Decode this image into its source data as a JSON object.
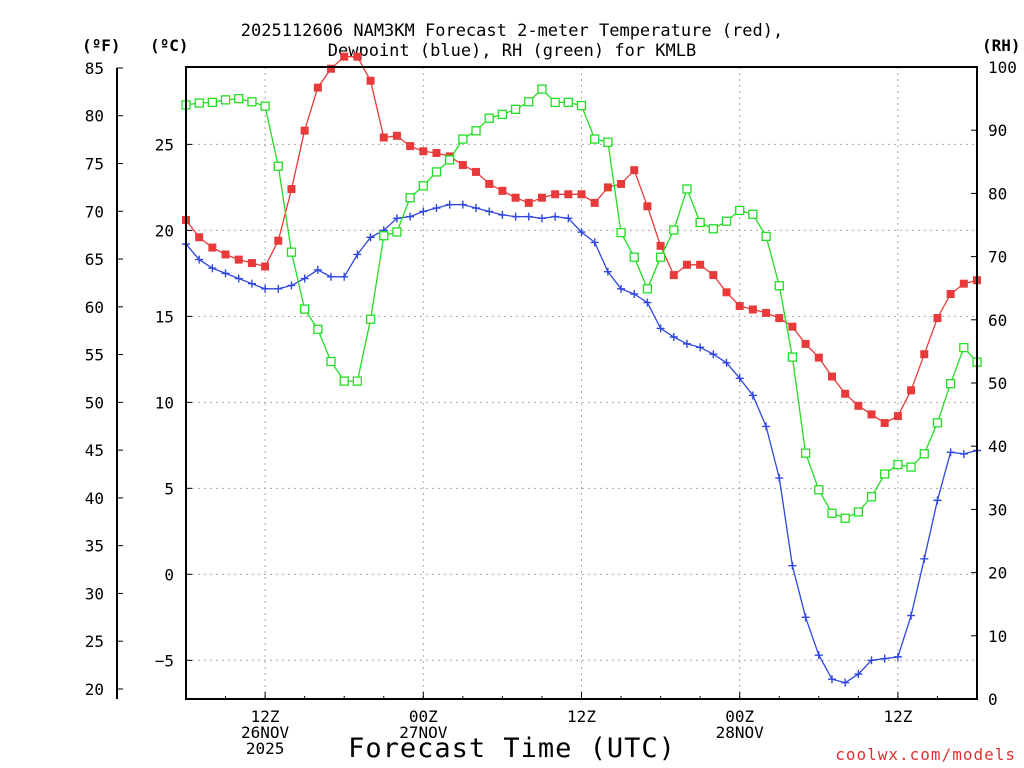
{
  "chart_data": {
    "type": "line",
    "title_line1": "2025112606 NAM3KM Forecast 2-meter Temperature (red),",
    "title_line2": "Dewpoint (blue), RH (green) for KMLB",
    "xlabel": "Forecast Time (UTC)",
    "credit": "coolwx.com/models",
    "header_fahrenheit": "(ºF)",
    "header_celsius": "(ºC)",
    "header_rh": "(RH)",
    "x_range_hours": [
      0,
      60
    ],
    "celsius_ylim": [
      -7.25,
      29.5
    ],
    "rh_ylim": [
      0,
      100
    ],
    "celsius_ticks": [
      -5,
      0,
      5,
      10,
      15,
      20,
      25
    ],
    "fahrenheit_ticks": [
      20,
      25,
      30,
      35,
      40,
      45,
      50,
      55,
      60,
      65,
      70,
      75,
      80,
      85
    ],
    "rh_ticks": [
      0,
      10,
      20,
      30,
      40,
      50,
      60,
      70,
      80,
      90,
      100
    ],
    "x_ticks": [
      {
        "hour": 6,
        "lines": [
          "12Z",
          "26NOV",
          "2025"
        ]
      },
      {
        "hour": 18,
        "lines": [
          "00Z",
          "27NOV"
        ]
      },
      {
        "hour": 30,
        "lines": [
          "12Z"
        ]
      },
      {
        "hour": 42,
        "lines": [
          "00Z",
          "28NOV"
        ]
      },
      {
        "hour": 54,
        "lines": [
          "12Z"
        ]
      }
    ],
    "series": [
      {
        "name": "Temperature (C)",
        "color": "#e83a3a",
        "marker": "filled-square",
        "x": [
          0,
          1,
          2,
          3,
          4,
          5,
          6,
          7,
          8,
          9,
          10,
          11,
          12,
          13,
          14,
          15,
          16,
          17,
          18,
          19,
          20,
          21,
          22,
          23,
          24,
          25,
          26,
          27,
          28,
          29,
          30,
          31,
          32,
          33,
          34,
          35,
          36,
          37,
          38,
          39,
          40,
          41,
          42,
          43,
          44,
          45,
          46,
          47,
          48,
          49,
          50,
          51,
          52,
          53,
          54,
          55,
          56,
          57,
          58,
          59,
          60
        ],
        "values": [
          20.6,
          19.6,
          19.0,
          18.6,
          18.3,
          18.1,
          17.9,
          19.4,
          22.4,
          25.8,
          28.3,
          29.4,
          30.1,
          30.1,
          28.7,
          25.4,
          25.5,
          24.9,
          24.6,
          24.5,
          24.3,
          23.8,
          23.4,
          22.7,
          22.3,
          21.9,
          21.6,
          21.9,
          22.1,
          22.1,
          22.1,
          21.6,
          22.5,
          22.7,
          23.5,
          21.4,
          19.1,
          17.4,
          18.0,
          18.0,
          17.4,
          16.4,
          15.6,
          15.4,
          15.2,
          14.9,
          14.4,
          13.4,
          12.6,
          11.5,
          10.5,
          9.8,
          9.3,
          8.8,
          9.2,
          10.7,
          12.8,
          14.9,
          16.3,
          16.9,
          17.1
        ]
      },
      {
        "name": "Dewpoint (C)",
        "color": "#2f47e0",
        "marker": "plus",
        "x": [
          0,
          1,
          2,
          3,
          4,
          5,
          6,
          7,
          8,
          9,
          10,
          11,
          12,
          13,
          14,
          15,
          16,
          17,
          18,
          19,
          20,
          21,
          22,
          23,
          24,
          25,
          26,
          27,
          28,
          29,
          30,
          31,
          32,
          33,
          34,
          35,
          36,
          37,
          38,
          39,
          40,
          41,
          42,
          43,
          44,
          45,
          46,
          47,
          48,
          49,
          50,
          51,
          52,
          53,
          54,
          55,
          56,
          57,
          58,
          59,
          60
        ],
        "values": [
          19.2,
          18.3,
          17.8,
          17.5,
          17.2,
          16.9,
          16.6,
          16.6,
          16.8,
          17.2,
          17.7,
          17.3,
          17.3,
          18.6,
          19.6,
          20.0,
          20.7,
          20.8,
          21.1,
          21.3,
          21.5,
          21.5,
          21.3,
          21.1,
          20.9,
          20.8,
          20.8,
          20.7,
          20.8,
          20.7,
          19.9,
          19.3,
          17.6,
          16.6,
          16.3,
          15.8,
          14.3,
          13.8,
          13.4,
          13.2,
          12.8,
          12.3,
          11.4,
          10.4,
          8.6,
          5.6,
          0.5,
          -2.5,
          -4.7,
          -6.1,
          -6.3,
          -5.8,
          -5.0,
          -4.9,
          -4.8,
          -2.4,
          0.9,
          4.3,
          7.1,
          7.0,
          7.2
        ]
      },
      {
        "name": "RH (%)",
        "color": "#22dd22",
        "marker": "open-square",
        "x": [
          0,
          1,
          2,
          3,
          4,
          5,
          6,
          7,
          8,
          9,
          10,
          11,
          12,
          13,
          14,
          15,
          16,
          17,
          18,
          19,
          20,
          21,
          22,
          23,
          24,
          25,
          26,
          27,
          28,
          29,
          30,
          31,
          32,
          33,
          34,
          35,
          36,
          37,
          38,
          39,
          40,
          41,
          42,
          43,
          44,
          45,
          46,
          47,
          48,
          49,
          50,
          51,
          52,
          53,
          54,
          55,
          56,
          57,
          58,
          59,
          60
        ],
        "values": [
          94,
          94.3,
          94.4,
          94.8,
          95,
          94.5,
          93.8,
          84.3,
          70.7,
          61.7,
          58.5,
          53.4,
          50.3,
          50.3,
          60.1,
          73.3,
          73.9,
          79.3,
          81.2,
          83.4,
          85.3,
          88.6,
          89.9,
          91.9,
          92.5,
          93.3,
          94.5,
          96.5,
          94.4,
          94.4,
          93.9,
          88.6,
          88.1,
          73.8,
          69.9,
          64.9,
          69.9,
          74.2,
          80.7,
          75.4,
          74.4,
          75.6,
          77.3,
          76.7,
          73.2,
          65.4,
          54.1,
          38.9,
          33.1,
          29.4,
          28.6,
          29.6,
          32,
          35.6,
          37.1,
          36.7,
          38.8,
          43.7,
          49.9,
          55.6,
          53.3
        ]
      }
    ]
  }
}
